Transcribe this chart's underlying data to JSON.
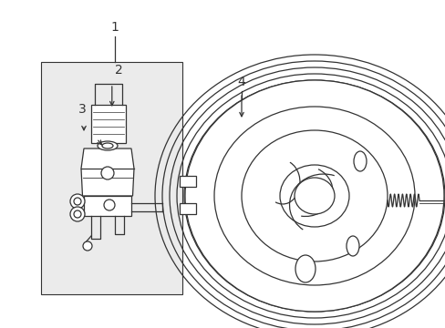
{
  "bg_color": "#ffffff",
  "line_color": "#333333",
  "box_fill": "#ebebeb",
  "label_fontsize": 10,
  "figsize": [
    4.89,
    3.6
  ],
  "dpi": 100
}
